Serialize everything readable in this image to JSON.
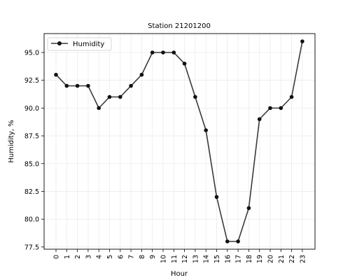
{
  "chart_data": {
    "type": "line",
    "title": "Station 21201200",
    "xlabel": "Hour",
    "ylabel": "Humidity, %",
    "categories": [
      "0",
      "1",
      "2",
      "3",
      "4",
      "5",
      "6",
      "7",
      "8",
      "9",
      "10",
      "11",
      "12",
      "13",
      "14",
      "15",
      "16",
      "17",
      "18",
      "19",
      "20",
      "21",
      "22",
      "23"
    ],
    "series": [
      {
        "name": "Humidity",
        "values": [
          93,
          92,
          92,
          92,
          90,
          91,
          91,
          92,
          93,
          95,
          95,
          95,
          94,
          91,
          88,
          82,
          78,
          78,
          81,
          89,
          90,
          90,
          91,
          96
        ]
      }
    ],
    "ylim": [
      77.3,
      96.7
    ],
    "yticks": [
      "77.5",
      "80.0",
      "82.5",
      "85.0",
      "87.5",
      "90.0",
      "92.5",
      "95.0"
    ],
    "grid": true,
    "legend": "upper-left",
    "colors": {
      "line": "#3a3a3a",
      "marker": "#111111",
      "grid": "#ebebeb"
    }
  }
}
